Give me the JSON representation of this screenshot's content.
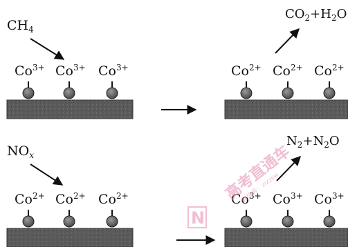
{
  "top_row": {
    "reactant_ch": "CH",
    "reactant_sub": "4",
    "sites_before": [
      {
        "el": "Co",
        "charge": "3+"
      },
      {
        "el": "Co",
        "charge": "3+"
      },
      {
        "el": "Co",
        "charge": "3+"
      }
    ],
    "product_co": "CO",
    "product_co_sub": "2",
    "product_plus": "+H",
    "product_h_sub": "2",
    "product_o": "O",
    "sites_after": [
      {
        "el": "Co",
        "charge": "2+"
      },
      {
        "el": "Co",
        "charge": "2+"
      },
      {
        "el": "Co",
        "charge": "2+"
      }
    ]
  },
  "bottom_row": {
    "reactant_no": "NO",
    "reactant_sub": "x",
    "sites_before": [
      {
        "el": "Co",
        "charge": "2+"
      },
      {
        "el": "Co",
        "charge": "2+"
      },
      {
        "el": "Co",
        "charge": "2+"
      }
    ],
    "product_n": "N",
    "product_n_sub": "2",
    "product_plus": "+N",
    "product_n2_sub": "2",
    "product_o": "O",
    "sites_after": [
      {
        "el": "Co",
        "charge": "3+"
      },
      {
        "el": "Co",
        "charge": "3+"
      },
      {
        "el": "Co",
        "charge": "3+"
      }
    ]
  },
  "colors": {
    "surface": "#5a5a5a",
    "atom": "#6e6e6e",
    "ink": "#111111",
    "watermark": "#e48ab3"
  },
  "watermark": {
    "logo_letter": "N",
    "text_cn": "高考直通车",
    "text_small": "微信号：zizzsw"
  }
}
